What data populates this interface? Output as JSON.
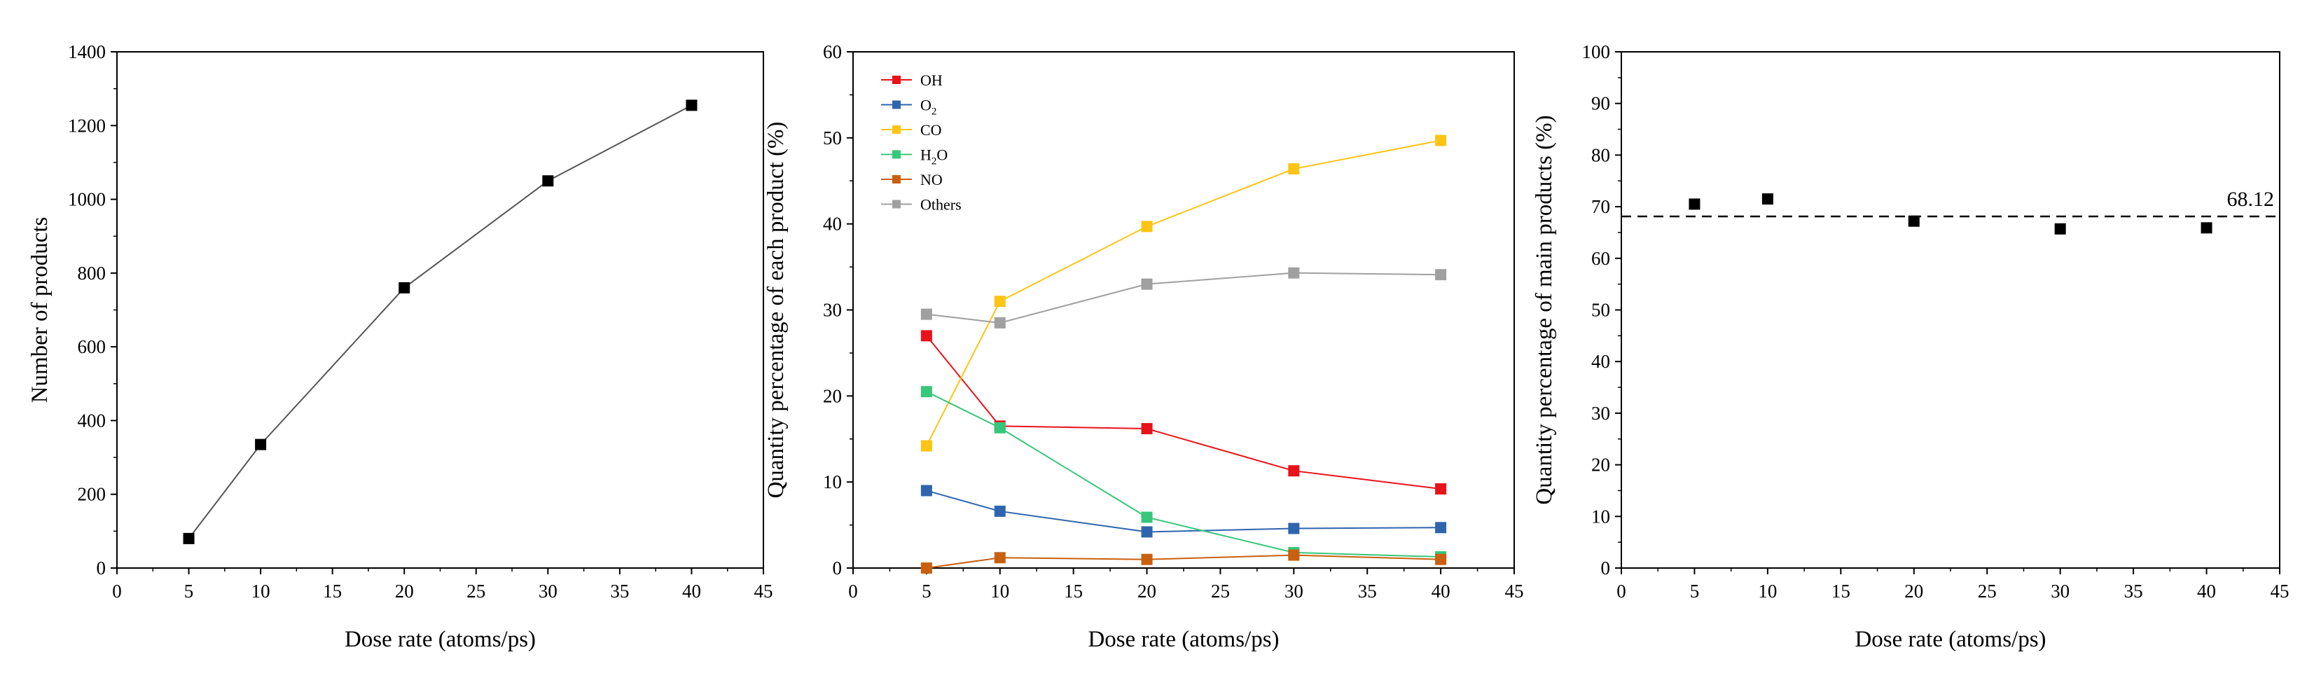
{
  "chart_data": [
    {
      "type": "line",
      "title": "",
      "xlabel": "Dose rate (atoms/ps)",
      "ylabel": "Number of products",
      "xlim": [
        0,
        45
      ],
      "ylim": [
        0,
        1400
      ],
      "xticks": [
        "0",
        "5",
        "10",
        "15",
        "20",
        "25",
        "30",
        "35",
        "40",
        "45"
      ],
      "yticks": [
        "0",
        "200",
        "400",
        "600",
        "800",
        "1000",
        "1200",
        "1400"
      ],
      "grid": false,
      "series": [
        {
          "name": "Number of products",
          "color": "#000000",
          "line_color": "#555555",
          "x": [
            5,
            10,
            20,
            30,
            40
          ],
          "values": [
            80,
            335,
            760,
            1050,
            1255
          ]
        }
      ]
    },
    {
      "type": "line",
      "title": "",
      "xlabel": "Dose rate (atoms/ps)",
      "ylabel": "Quantity percentage of each product (%)",
      "xlim": [
        0,
        45
      ],
      "ylim": [
        0,
        60
      ],
      "xticks": [
        "0",
        "5",
        "10",
        "15",
        "20",
        "25",
        "30",
        "35",
        "40",
        "45"
      ],
      "yticks": [
        "0",
        "10",
        "20",
        "30",
        "40",
        "50",
        "60"
      ],
      "grid": false,
      "legend_position": "top-left",
      "series": [
        {
          "name": "OH",
          "label_main": "OH",
          "label_sub": "",
          "label_tail": "",
          "color": "#e8121b",
          "x": [
            5,
            10,
            20,
            30,
            40
          ],
          "values": [
            27.0,
            16.5,
            16.2,
            11.3,
            9.2
          ]
        },
        {
          "name": "O2",
          "label_main": "O",
          "label_sub": "2",
          "label_tail": "",
          "color": "#2f65ad",
          "x": [
            5,
            10,
            20,
            30,
            40
          ],
          "values": [
            9.0,
            6.6,
            4.2,
            4.6,
            4.7
          ]
        },
        {
          "name": "CO",
          "label_main": "CO",
          "label_sub": "",
          "label_tail": "",
          "color": "#fcc413",
          "x": [
            5,
            10,
            20,
            30,
            40
          ],
          "values": [
            14.2,
            31.0,
            39.7,
            46.4,
            49.7
          ]
        },
        {
          "name": "H2O",
          "label_main": "H",
          "label_sub": "2",
          "label_tail": "O",
          "color": "#36c77a",
          "x": [
            5,
            10,
            20,
            30,
            40
          ],
          "values": [
            20.5,
            16.3,
            5.9,
            1.8,
            1.3
          ]
        },
        {
          "name": "NO",
          "label_main": "NO",
          "label_sub": "",
          "label_tail": "",
          "color": "#c9600f",
          "x": [
            5,
            10,
            20,
            30,
            40
          ],
          "values": [
            0.0,
            1.2,
            1.0,
            1.5,
            1.0
          ]
        },
        {
          "name": "Others",
          "label_main": "Others",
          "label_sub": "",
          "label_tail": "",
          "color": "#a0a0a0",
          "x": [
            5,
            10,
            20,
            30,
            40
          ],
          "values": [
            29.5,
            28.5,
            33.0,
            34.3,
            34.1
          ]
        }
      ]
    },
    {
      "type": "scatter",
      "title": "",
      "xlabel": "Dose rate (atoms/ps)",
      "ylabel": "Quantity percentage of main products (%)",
      "xlim": [
        0,
        45
      ],
      "ylim": [
        0,
        100
      ],
      "xticks": [
        "0",
        "5",
        "10",
        "15",
        "20",
        "25",
        "30",
        "35",
        "40",
        "45"
      ],
      "yticks": [
        "0",
        "10",
        "20",
        "30",
        "40",
        "50",
        "60",
        "70",
        "80",
        "90",
        "100"
      ],
      "grid": false,
      "series": [
        {
          "name": "Main products",
          "color": "#000000",
          "x": [
            5,
            10,
            20,
            30,
            40
          ],
          "values": [
            70.5,
            71.5,
            67.2,
            65.7,
            65.9
          ]
        }
      ],
      "reference_line": {
        "value": 68.12,
        "label": "68.12",
        "style": "dashed"
      }
    }
  ]
}
